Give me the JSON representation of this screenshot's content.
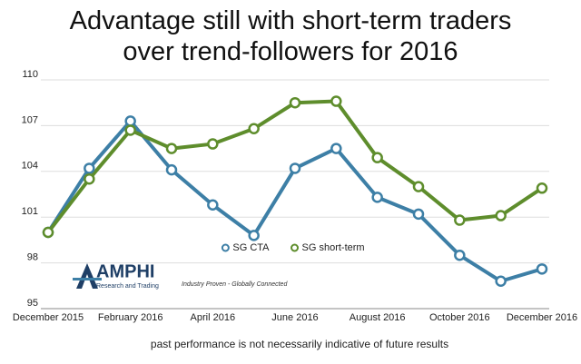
{
  "chart_data": {
    "type": "line",
    "title": "Advantage still with short-term traders over trend-followers for 2016",
    "footnote": "past performance is not necessarily indicative of future results",
    "categories": [
      "December 2015",
      null,
      "February 2016",
      null,
      "April 2016",
      null,
      "June 2016",
      null,
      "August 2016",
      null,
      "October 2016",
      null,
      "December 2016"
    ],
    "series": [
      {
        "name": "SG CTA",
        "color": "#3d7fa6",
        "values": [
          100.0,
          104.2,
          107.3,
          104.1,
          101.8,
          99.8,
          104.2,
          105.5,
          102.3,
          101.2,
          98.5,
          96.8,
          97.6
        ]
      },
      {
        "name": "SG short-term",
        "color": "#5e8d2c",
        "values": [
          100.0,
          103.5,
          106.7,
          105.5,
          105.8,
          106.8,
          108.5,
          108.6,
          104.9,
          103.0,
          100.8,
          101.1,
          102.9
        ]
      }
    ],
    "ylim": [
      95,
      110
    ],
    "yticks": [
      95,
      98,
      101,
      104,
      107,
      110
    ],
    "grid": true,
    "legend": "center"
  },
  "logo": {
    "name": "AMPHI",
    "tagline": "Research and Trading",
    "slogan": "Industry Proven - Globally Connected"
  }
}
